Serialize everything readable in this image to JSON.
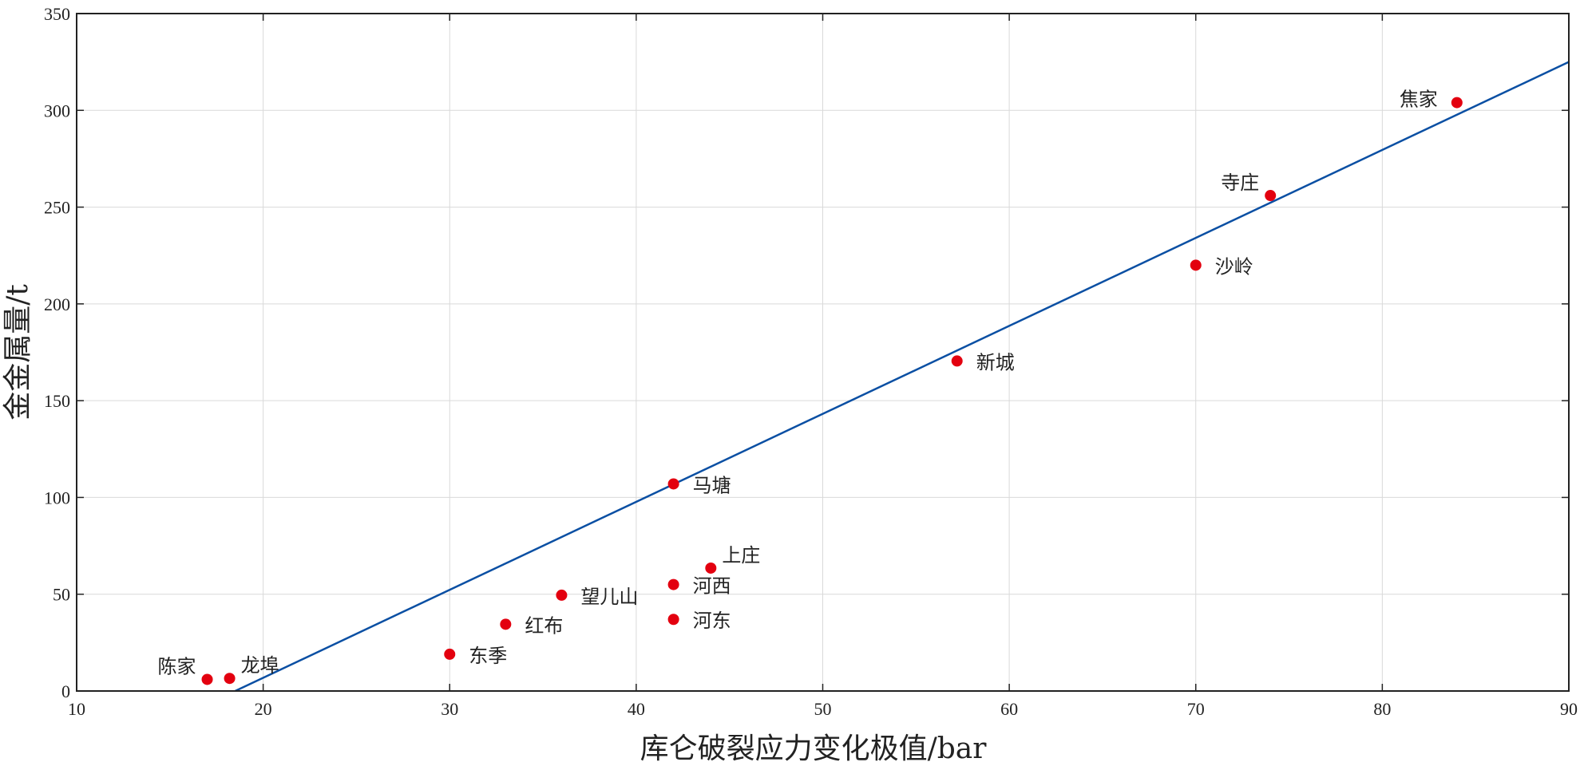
{
  "chart_data": {
    "type": "scatter",
    "title": "",
    "xlabel": "库仑破裂应力变化极值/bar",
    "ylabel": "金金属量/t",
    "xlim": [
      10,
      90
    ],
    "ylim": [
      0,
      350
    ],
    "xticks": [
      10,
      20,
      30,
      40,
      50,
      60,
      70,
      80,
      90
    ],
    "yticks": [
      0,
      50,
      100,
      150,
      200,
      250,
      300,
      350
    ],
    "grid": true,
    "colors": {
      "points": "#e3000f",
      "fit_line": "#0a4fa3",
      "grid": "#d9d9d9",
      "axis": "#222222"
    },
    "points": [
      {
        "name": "陈家",
        "x": 17,
        "y": 6,
        "label_side": "left-up"
      },
      {
        "name": "龙埠",
        "x": 18.2,
        "y": 6.5,
        "label_side": "right-up"
      },
      {
        "name": "东季",
        "x": 30,
        "y": 19,
        "label_side": "right"
      },
      {
        "name": "红布",
        "x": 33,
        "y": 34.5,
        "label_side": "right"
      },
      {
        "name": "望儿山",
        "x": 36,
        "y": 49.5,
        "label_side": "right"
      },
      {
        "name": "河西",
        "x": 42,
        "y": 55,
        "label_side": "right"
      },
      {
        "name": "河东",
        "x": 42,
        "y": 37,
        "label_side": "right"
      },
      {
        "name": "上庄",
        "x": 44,
        "y": 63.5,
        "label_side": "right-up"
      },
      {
        "name": "马塘",
        "x": 42,
        "y": 107,
        "label_side": "right"
      },
      {
        "name": "新城",
        "x": 57.2,
        "y": 170.5,
        "label_side": "right"
      },
      {
        "name": "沙岭",
        "x": 70,
        "y": 220,
        "label_side": "right"
      },
      {
        "name": "寺庄",
        "x": 74,
        "y": 256,
        "label_side": "left-up"
      },
      {
        "name": "焦家",
        "x": 84,
        "y": 304,
        "label_side": "left"
      }
    ],
    "fit_line": {
      "x": [
        18.5,
        90
      ],
      "y": [
        0,
        325
      ]
    }
  }
}
